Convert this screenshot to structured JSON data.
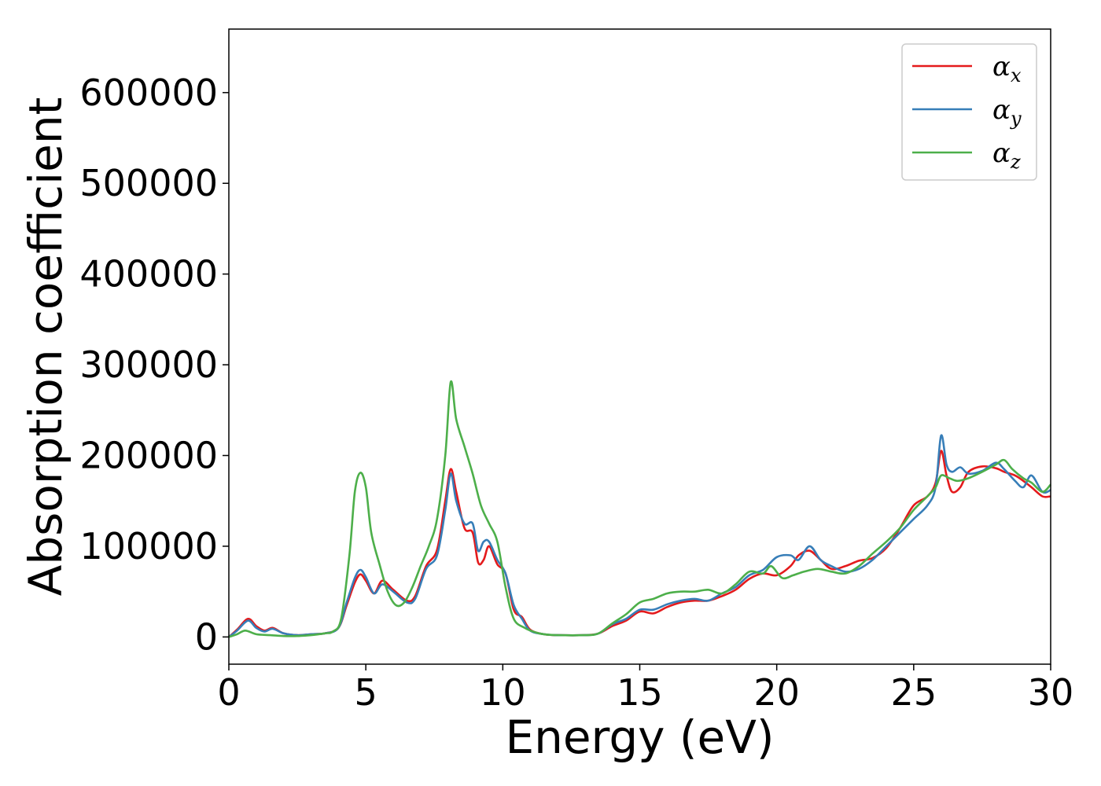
{
  "chart_data": {
    "type": "line",
    "title": "",
    "xlabel": "Energy (eV)",
    "ylabel": "Absorption coefficient",
    "xlim": [
      0,
      30
    ],
    "ylim": [
      -30000,
      670000
    ],
    "xticks": [
      0,
      5,
      10,
      15,
      20,
      25,
      30
    ],
    "xtick_labels": [
      "0",
      "5",
      "10",
      "15",
      "20",
      "25",
      "30"
    ],
    "yticks": [
      0,
      100000,
      200000,
      300000,
      400000,
      500000,
      600000
    ],
    "ytick_labels": [
      "0",
      "100000",
      "200000",
      "300000",
      "400000",
      "500000",
      "600000"
    ],
    "grid": false,
    "legend_position": "top-right",
    "series": [
      {
        "name": "αx",
        "symbol": "α",
        "subscript": "x",
        "color": "#e41a1c",
        "x": [
          0,
          0.3,
          0.7,
          1.0,
          1.3,
          1.6,
          2.0,
          2.5,
          3.0,
          3.5,
          4.0,
          4.3,
          4.6,
          4.8,
          5.0,
          5.3,
          5.6,
          6.0,
          6.5,
          6.8,
          7.2,
          7.6,
          7.9,
          8.1,
          8.3,
          8.6,
          8.9,
          9.1,
          9.3,
          9.5,
          9.8,
          10.1,
          10.4,
          10.7,
          11.0,
          11.5,
          12.0,
          13.0,
          13.5,
          14.0,
          14.5,
          15.0,
          15.5,
          16.0,
          16.5,
          17.0,
          17.5,
          18.0,
          18.5,
          19.0,
          19.5,
          20.0,
          20.5,
          20.8,
          21.2,
          21.6,
          22.0,
          22.5,
          23.0,
          23.5,
          24.0,
          24.5,
          25.0,
          25.5,
          25.8,
          26.0,
          26.2,
          26.4,
          26.7,
          27.0,
          27.5,
          28.0,
          28.3,
          28.7,
          29.0,
          29.3,
          29.7,
          30.0
        ],
        "values": [
          0,
          8000,
          20000,
          12000,
          7000,
          10000,
          4000,
          2000,
          3000,
          4000,
          10000,
          35000,
          60000,
          69000,
          62000,
          48000,
          62000,
          52000,
          40000,
          45000,
          78000,
          96000,
          150000,
          185000,
          160000,
          120000,
          115000,
          82000,
          85000,
          100000,
          80000,
          70000,
          30000,
          22000,
          8000,
          3000,
          2000,
          2000,
          4000,
          12000,
          18000,
          28000,
          26000,
          33000,
          38000,
          40000,
          40000,
          45000,
          52000,
          64000,
          70000,
          68000,
          78000,
          90000,
          95000,
          85000,
          75000,
          78000,
          84000,
          87000,
          98000,
          120000,
          145000,
          155000,
          170000,
          205000,
          178000,
          160000,
          165000,
          182000,
          188000,
          186000,
          182000,
          178000,
          172000,
          165000,
          155000,
          155000
        ]
      },
      {
        "name": "αy",
        "symbol": "α",
        "subscript": "y",
        "color": "#377eb8",
        "x": [
          0,
          0.3,
          0.7,
          1.0,
          1.3,
          1.6,
          2.0,
          2.5,
          3.0,
          3.5,
          4.0,
          4.3,
          4.6,
          4.8,
          5.0,
          5.3,
          5.6,
          6.0,
          6.5,
          6.8,
          7.2,
          7.6,
          7.9,
          8.1,
          8.3,
          8.6,
          8.9,
          9.1,
          9.3,
          9.5,
          9.8,
          10.1,
          10.4,
          10.7,
          11.0,
          11.5,
          12.0,
          13.0,
          13.5,
          14.0,
          14.5,
          15.0,
          15.5,
          16.0,
          16.5,
          17.0,
          17.5,
          18.0,
          18.5,
          19.0,
          19.5,
          20.0,
          20.5,
          20.8,
          21.2,
          21.6,
          22.0,
          22.5,
          23.0,
          23.5,
          24.0,
          24.5,
          25.0,
          25.5,
          25.8,
          26.0,
          26.2,
          26.4,
          26.7,
          27.0,
          27.5,
          28.0,
          28.3,
          28.7,
          29.0,
          29.3,
          29.7,
          30.0
        ],
        "values": [
          0,
          7000,
          18000,
          10000,
          6000,
          9000,
          4000,
          2000,
          3000,
          4000,
          10000,
          38000,
          65000,
          74000,
          66000,
          48000,
          58000,
          50000,
          38000,
          42000,
          75000,
          90000,
          140000,
          180000,
          150000,
          125000,
          125000,
          95000,
          105000,
          105000,
          85000,
          70000,
          35000,
          20000,
          7000,
          3000,
          2000,
          2000,
          4000,
          14000,
          20000,
          30000,
          30000,
          36000,
          40000,
          42000,
          40000,
          48000,
          55000,
          68000,
          74000,
          88000,
          90000,
          85000,
          100000,
          85000,
          78000,
          72000,
          75000,
          85000,
          100000,
          115000,
          130000,
          145000,
          165000,
          222000,
          190000,
          182000,
          187000,
          180000,
          183000,
          192000,
          185000,
          172000,
          165000,
          178000,
          160000,
          162000
        ]
      },
      {
        "name": "αz",
        "symbol": "α",
        "subscript": "z",
        "color": "#4daf4a",
        "x": [
          0,
          0.3,
          0.6,
          1.0,
          1.5,
          2.0,
          2.5,
          3.0,
          3.5,
          3.8,
          4.1,
          4.4,
          4.6,
          4.8,
          5.0,
          5.2,
          5.5,
          5.8,
          6.1,
          6.4,
          6.7,
          7.0,
          7.3,
          7.6,
          7.9,
          8.1,
          8.3,
          8.6,
          8.9,
          9.2,
          9.5,
          9.8,
          10.1,
          10.4,
          10.8,
          11.2,
          11.5,
          12.0,
          13.0,
          13.5,
          14.0,
          14.5,
          15.0,
          15.5,
          16.0,
          16.5,
          17.0,
          17.5,
          18.0,
          18.5,
          19.0,
          19.5,
          19.8,
          20.2,
          20.6,
          21.0,
          21.5,
          22.0,
          22.5,
          23.0,
          23.5,
          24.0,
          24.5,
          25.0,
          25.5,
          25.8,
          26.0,
          26.3,
          26.6,
          27.0,
          27.5,
          28.0,
          28.3,
          28.6,
          29.0,
          29.3,
          29.7,
          30.0
        ],
        "values": [
          0,
          3000,
          7000,
          3000,
          2000,
          1000,
          1000,
          2000,
          4000,
          6000,
          20000,
          90000,
          160000,
          181000,
          165000,
          115000,
          80000,
          50000,
          35000,
          38000,
          55000,
          78000,
          100000,
          130000,
          200000,
          281000,
          240000,
          210000,
          180000,
          145000,
          125000,
          105000,
          55000,
          20000,
          10000,
          5000,
          3000,
          2000,
          2000,
          4000,
          15000,
          25000,
          38000,
          42000,
          48000,
          50000,
          50000,
          52000,
          48000,
          58000,
          72000,
          70000,
          78000,
          65000,
          68000,
          72000,
          75000,
          72000,
          70000,
          78000,
          92000,
          105000,
          120000,
          140000,
          155000,
          165000,
          178000,
          175000,
          172000,
          175000,
          182000,
          190000,
          195000,
          185000,
          175000,
          170000,
          160000,
          168000
        ]
      }
    ]
  }
}
